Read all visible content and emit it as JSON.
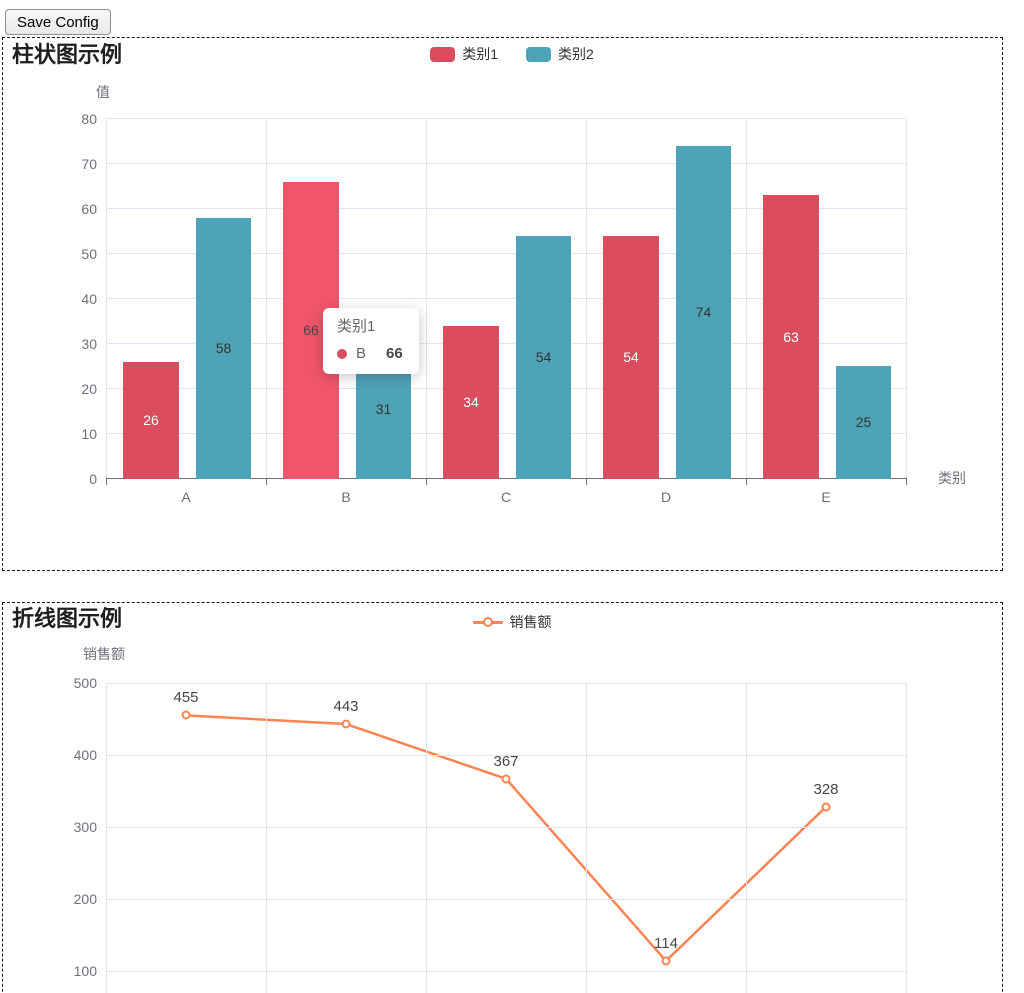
{
  "ui": {
    "save_button_label": "Save Config"
  },
  "bar_chart_tooltip": {
    "header": "类别1",
    "item_label": "B",
    "item_value": "66",
    "dot_color": "#DB4C5F"
  },
  "chart_data": [
    {
      "type": "bar",
      "title": "柱状图示例",
      "categories": [
        "A",
        "B",
        "C",
        "D",
        "E"
      ],
      "series": [
        {
          "name": "类别1",
          "color": "#DB4C5F",
          "label_color": "#ffffff",
          "values": [
            26,
            66,
            34,
            54,
            63
          ]
        },
        {
          "name": "类别2",
          "color": "#4EA3B7",
          "label_color": "#333333",
          "values": [
            58,
            31,
            54,
            74,
            25
          ]
        }
      ],
      "xlabel": "类别",
      "ylabel": "值",
      "ylim": [
        0,
        80
      ],
      "yticks": [
        0,
        10,
        20,
        30,
        40,
        50,
        60,
        70,
        80
      ],
      "grid": true,
      "legend_position": "top",
      "highlight": {
        "series_index": 0,
        "category_index": 1,
        "color": "#F0566B",
        "label_color": "#464646"
      }
    },
    {
      "type": "line",
      "title": "折线图示例",
      "series": [
        {
          "name": "销售额",
          "color": "#FC8452",
          "values": [
            455,
            443,
            367,
            114,
            328
          ]
        }
      ],
      "ylabel": "销售额",
      "yticks_visible": [
        100,
        200,
        300,
        400,
        500
      ],
      "ylim_visible": [
        100,
        500
      ],
      "grid": true,
      "legend_position": "top",
      "x_axis_visible": false
    }
  ]
}
